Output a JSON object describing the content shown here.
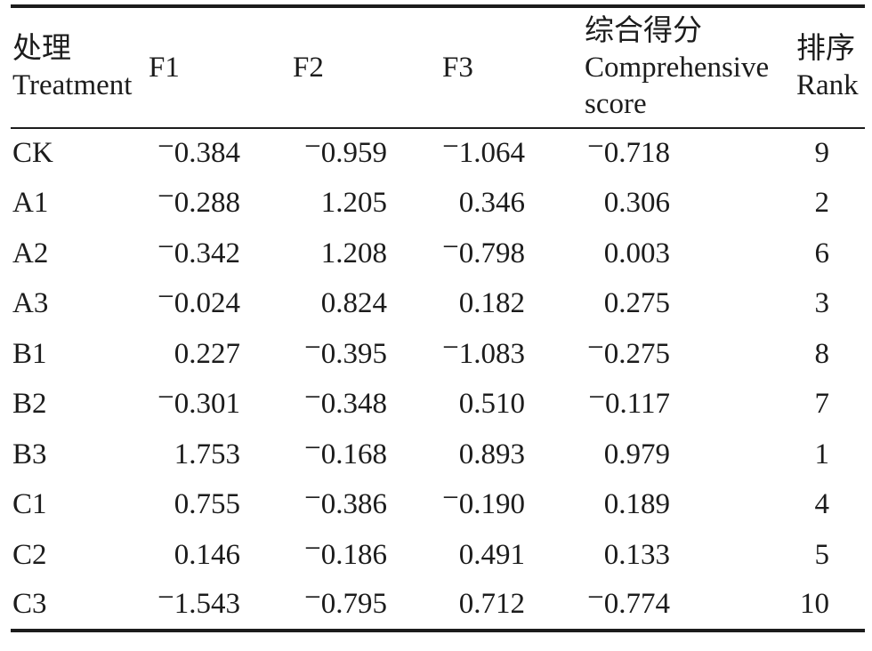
{
  "table": {
    "columns": [
      {
        "id": "treatment",
        "label_zh": "处理",
        "label_en": "Treatment"
      },
      {
        "id": "f1",
        "label": "F1"
      },
      {
        "id": "f2",
        "label": "F2"
      },
      {
        "id": "f3",
        "label": "F3"
      },
      {
        "id": "comprehensive_score",
        "label_zh": "综合得分",
        "label_en": "Comprehensive score"
      },
      {
        "id": "rank",
        "label_zh": "排序",
        "label_en": "Rank"
      }
    ],
    "rows": [
      {
        "treatment": "CK",
        "f1": "−0.384",
        "f2": "−0.959",
        "f3": "−1.064",
        "score": "−0.718",
        "rank": "9"
      },
      {
        "treatment": "A1",
        "f1": "−0.288",
        "f2": "1.205",
        "f3": "0.346",
        "score": "0.306",
        "rank": "2"
      },
      {
        "treatment": "A2",
        "f1": "−0.342",
        "f2": "1.208",
        "f3": "−0.798",
        "score": "0.003",
        "rank": "6"
      },
      {
        "treatment": "A3",
        "f1": "−0.024",
        "f2": "0.824",
        "f3": "0.182",
        "score": "0.275",
        "rank": "3"
      },
      {
        "treatment": "B1",
        "f1": "0.227",
        "f2": "−0.395",
        "f3": "−1.083",
        "score": "−0.275",
        "rank": "8"
      },
      {
        "treatment": "B2",
        "f1": "−0.301",
        "f2": "−0.348",
        "f3": "0.510",
        "score": "−0.117",
        "rank": "7"
      },
      {
        "treatment": "B3",
        "f1": "1.753",
        "f2": "−0.168",
        "f3": "0.893",
        "score": "0.979",
        "rank": "1"
      },
      {
        "treatment": "C1",
        "f1": "0.755",
        "f2": "−0.386",
        "f3": "−0.190",
        "score": "0.189",
        "rank": "4"
      },
      {
        "treatment": "C2",
        "f1": "0.146",
        "f2": "−0.186",
        "f3": "0.491",
        "score": "0.133",
        "rank": "5"
      },
      {
        "treatment": "C3",
        "f1": "−1.543",
        "f2": "−0.795",
        "f3": "0.712",
        "score": "−0.774",
        "rank": "10"
      }
    ]
  },
  "chart_data": {
    "type": "table",
    "title": "",
    "columns": [
      "处理 Treatment",
      "F1",
      "F2",
      "F3",
      "综合得分 Comprehensive score",
      "排序 Rank"
    ],
    "rows": [
      [
        "CK",
        -0.384,
        -0.959,
        -1.064,
        -0.718,
        9
      ],
      [
        "A1",
        -0.288,
        1.205,
        0.346,
        0.306,
        2
      ],
      [
        "A2",
        -0.342,
        1.208,
        -0.798,
        0.003,
        6
      ],
      [
        "A3",
        -0.024,
        0.824,
        0.182,
        0.275,
        3
      ],
      [
        "B1",
        0.227,
        -0.395,
        -1.083,
        -0.275,
        8
      ],
      [
        "B2",
        -0.301,
        -0.348,
        0.51,
        -0.117,
        7
      ],
      [
        "B3",
        1.753,
        -0.168,
        0.893,
        0.979,
        1
      ],
      [
        "C1",
        0.755,
        -0.386,
        -0.19,
        0.189,
        4
      ],
      [
        "C2",
        0.146,
        -0.186,
        0.491,
        0.133,
        5
      ],
      [
        "C3",
        -1.543,
        -0.795,
        0.712,
        -0.774,
        10
      ]
    ]
  }
}
